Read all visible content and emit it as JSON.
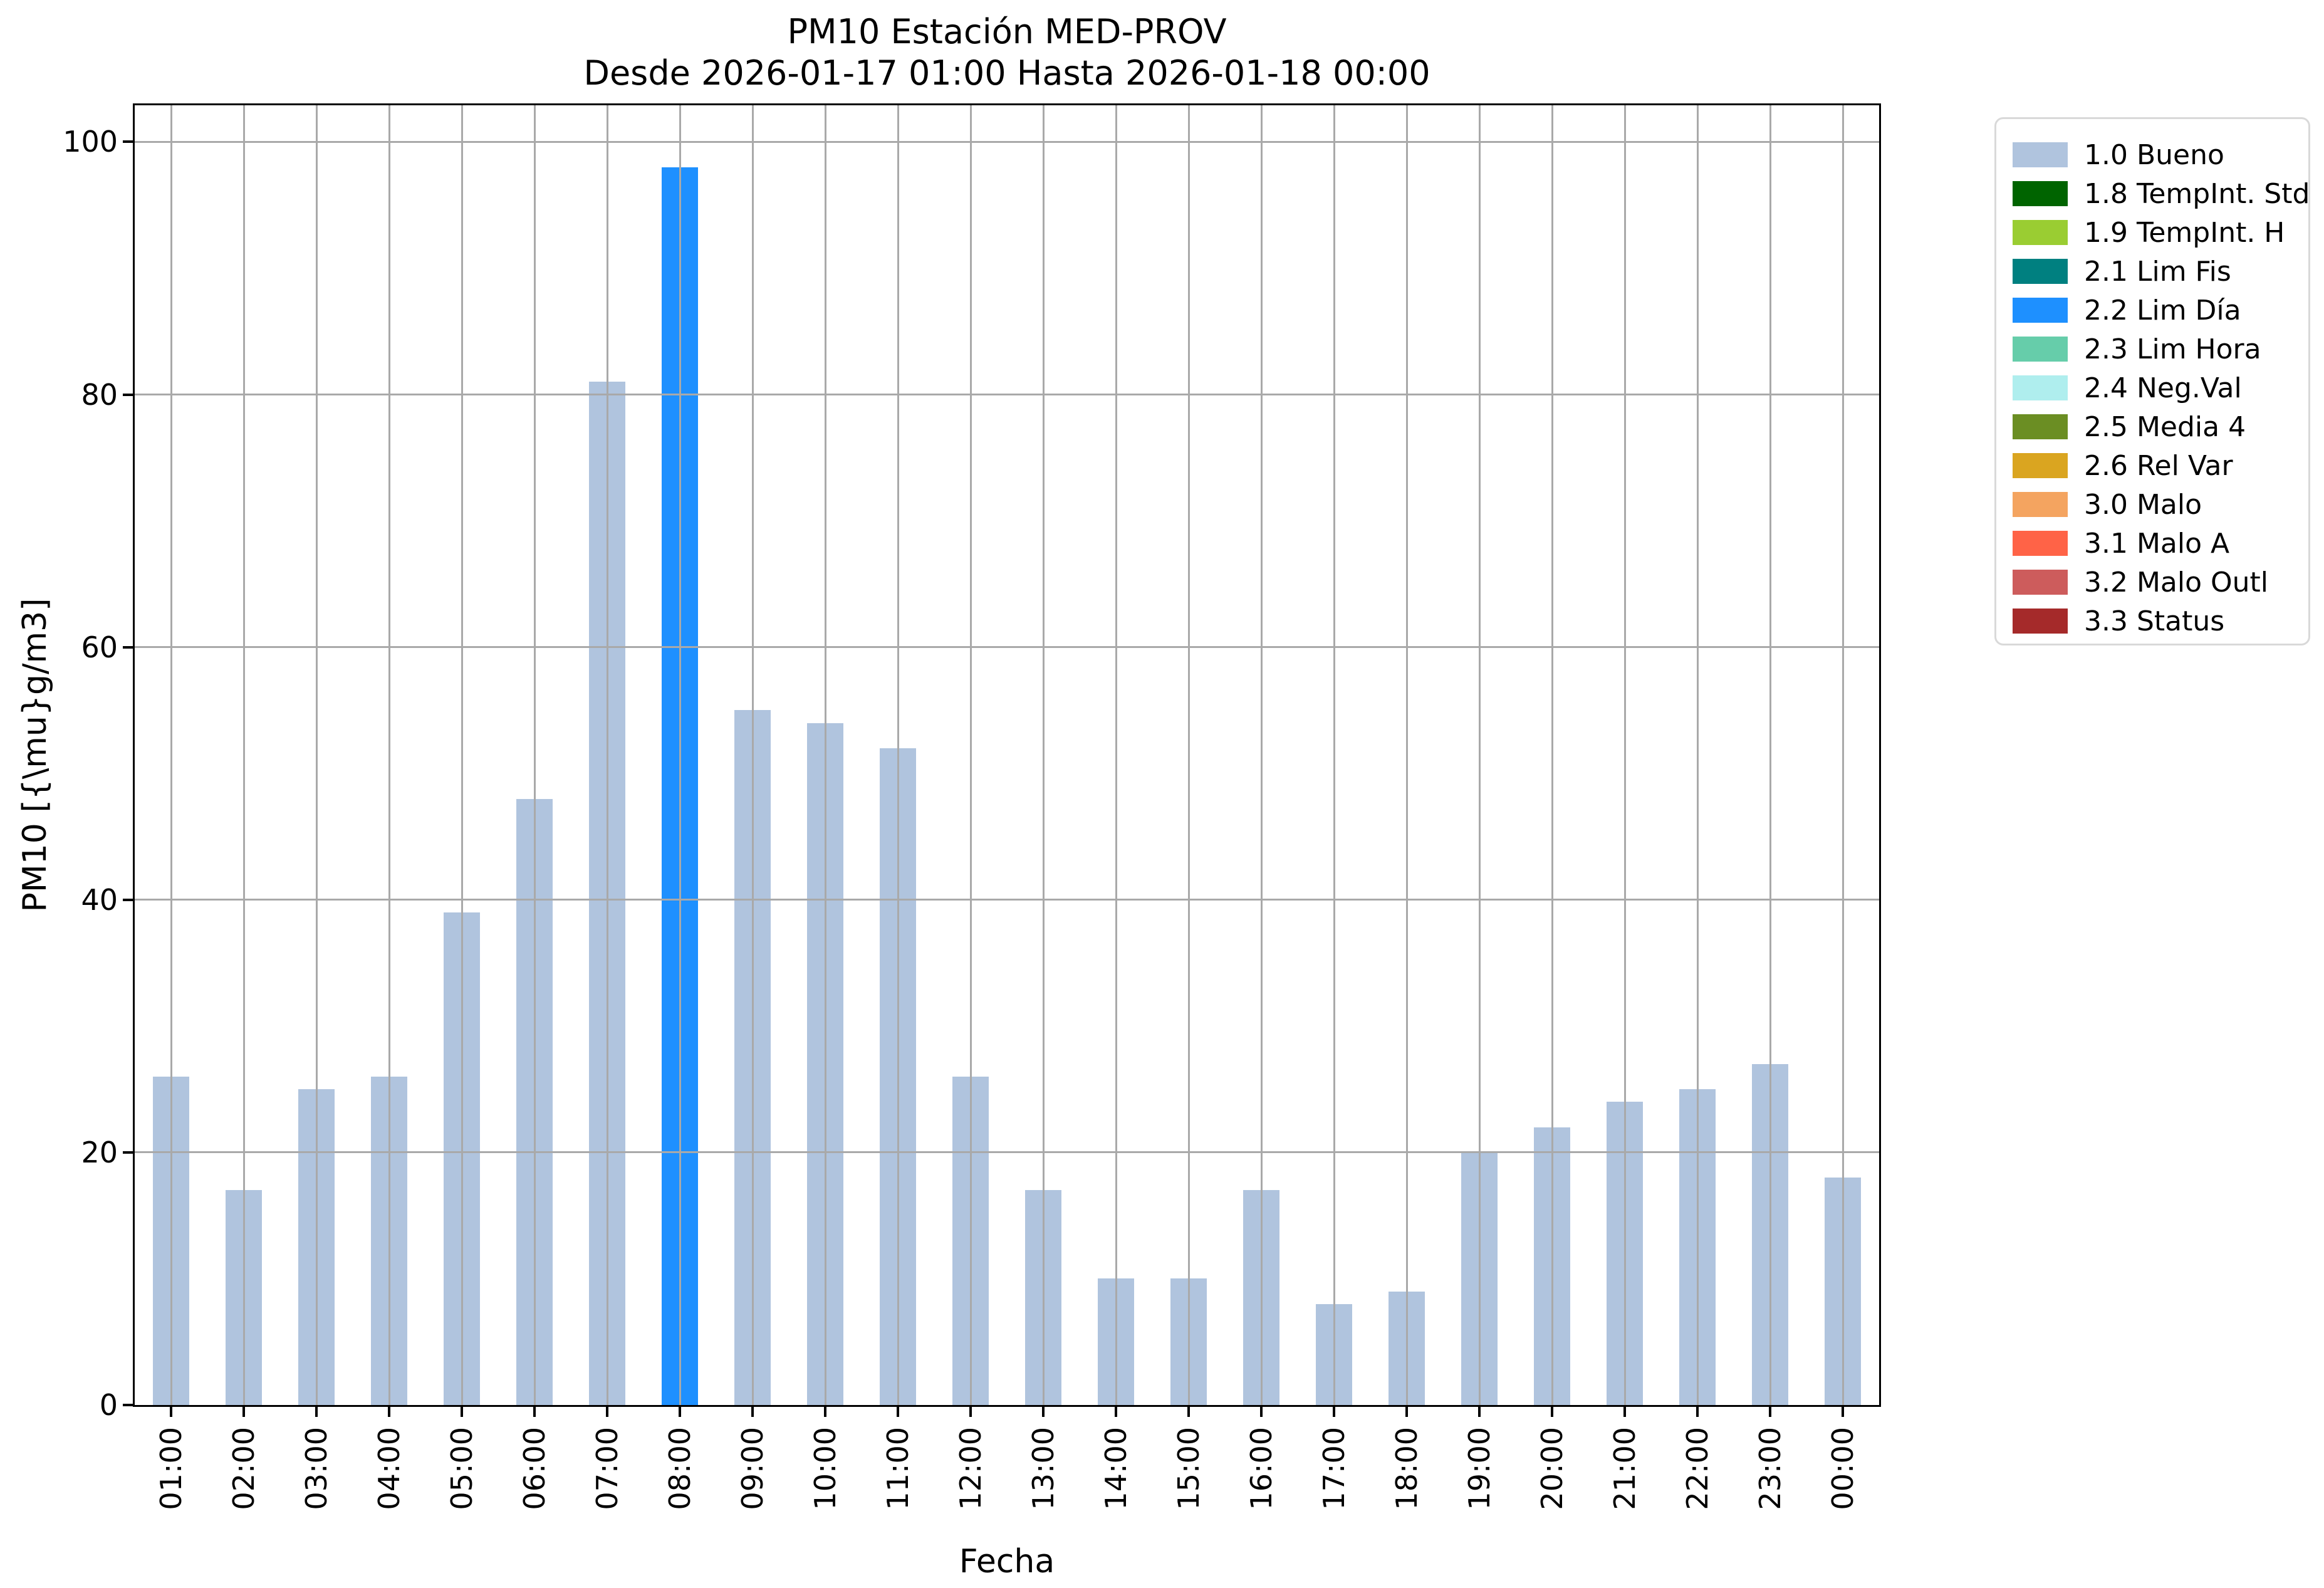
{
  "chart_data": {
    "type": "bar",
    "title": "PM10 Estación MED-PROV",
    "subtitle": "Desde 2026-01-17 01:00 Hasta 2026-01-18 00:00",
    "xlabel": "Fecha",
    "ylabel": "PM10 [{\\mu}g/m3]",
    "categories": [
      "01:00",
      "02:00",
      "03:00",
      "04:00",
      "05:00",
      "06:00",
      "07:00",
      "08:00",
      "09:00",
      "10:00",
      "11:00",
      "12:00",
      "13:00",
      "14:00",
      "15:00",
      "16:00",
      "17:00",
      "18:00",
      "19:00",
      "20:00",
      "21:00",
      "22:00",
      "23:00",
      "00:00"
    ],
    "values": [
      26,
      17,
      25,
      26,
      39,
      48,
      81,
      98,
      55,
      54,
      52,
      26,
      17,
      10,
      10,
      17,
      8,
      9,
      20,
      22,
      24,
      25,
      27,
      18
    ],
    "bar_statuses": [
      "1.0 Bueno",
      "1.0 Bueno",
      "1.0 Bueno",
      "1.0 Bueno",
      "1.0 Bueno",
      "1.0 Bueno",
      "1.0 Bueno",
      "2.2 Lim Día",
      "1.0 Bueno",
      "1.0 Bueno",
      "1.0 Bueno",
      "1.0 Bueno",
      "1.0 Bueno",
      "1.0 Bueno",
      "1.0 Bueno",
      "1.0 Bueno",
      "1.0 Bueno",
      "1.0 Bueno",
      "1.0 Bueno",
      "1.0 Bueno",
      "1.0 Bueno",
      "1.0 Bueno",
      "1.0 Bueno",
      "1.0 Bueno"
    ],
    "status_colors": {
      "1.0 Bueno": "#b0c4de",
      "2.2 Lim Día": "#1e90ff"
    },
    "yticks": [
      0,
      20,
      40,
      60,
      80,
      100
    ],
    "ylim": [
      0,
      102.9
    ],
    "grid": true,
    "grid_color": "#a9a9a9",
    "legend_position": "outside-right",
    "legend": [
      {
        "label": "1.0 Bueno",
        "color": "#b0c4de"
      },
      {
        "label": "1.8 TempInt. Std",
        "color": "#006400"
      },
      {
        "label": "1.9 TempInt. H",
        "color": "#9acd32"
      },
      {
        "label": "2.1 Lim Fis",
        "color": "#008080"
      },
      {
        "label": "2.2 Lim Día",
        "color": "#1e90ff"
      },
      {
        "label": "2.3 Lim Hora",
        "color": "#66cdaa"
      },
      {
        "label": "2.4 Neg.Val",
        "color": "#afeeee"
      },
      {
        "label": "2.5 Media 4",
        "color": "#6b8e23"
      },
      {
        "label": "2.6 Rel Var",
        "color": "#daa520"
      },
      {
        "label": "3.0 Malo",
        "color": "#f4a460"
      },
      {
        "label": "3.1 Malo A",
        "color": "#ff6347"
      },
      {
        "label": "3.2 Malo Outl",
        "color": "#cd5c5c"
      },
      {
        "label": "3.3 Status",
        "color": "#a52a2a"
      }
    ]
  }
}
